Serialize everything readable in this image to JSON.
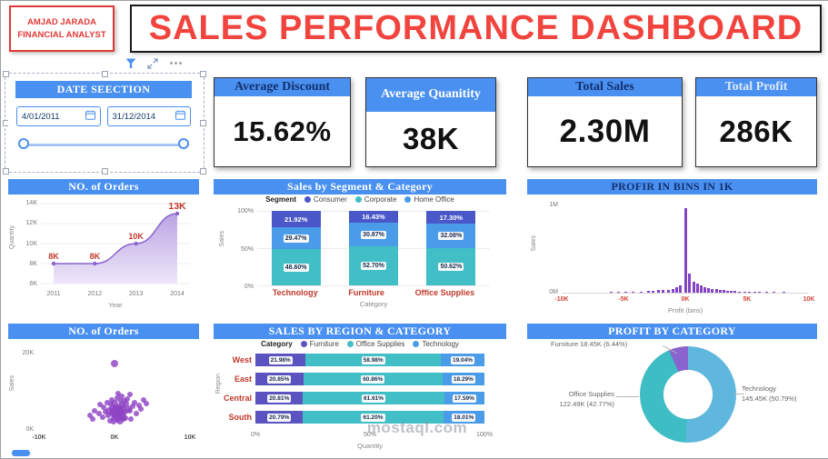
{
  "badge": {
    "line1": "AMJAD JARADA",
    "line2": "FINANCIAL ANALYST"
  },
  "title": "SALES PERFORMANCE DASHBOARD",
  "toolbar": {
    "more_glyph": "⋯"
  },
  "date_section": {
    "title": "DATE SEECTION",
    "start_date": "4/01/2011",
    "end_date": "31/12/2014"
  },
  "kpis": {
    "discount": {
      "title": "Average Discount",
      "value": "15.62%"
    },
    "quantity": {
      "title": "Average Quanitity",
      "value": "38K"
    },
    "sales": {
      "title": "Total Sales",
      "value": "2.30M"
    },
    "profit": {
      "title": "Total Profit",
      "value": "286K"
    }
  },
  "watermark": "mostaql.com",
  "colors": {
    "header_blue": "#4a90f0",
    "title_red": "#f2443e",
    "navy": "#12306e",
    "chart_purple": "#8a4fc8",
    "label_red": "#c0392b"
  },
  "chart_data": [
    {
      "id": "orders_area",
      "type": "area",
      "title": "NO. of Orders",
      "xlabel": "Year",
      "ylabel": "Quantity",
      "x": [
        "2011",
        "2012",
        "2013",
        "2014"
      ],
      "values_k": [
        8,
        8,
        10,
        13
      ],
      "point_labels": [
        "8K",
        "8K",
        "10K",
        "13K"
      ],
      "yticks": [
        "14K",
        "12K",
        "10K",
        "8K",
        "6K"
      ],
      "ylim_k": [
        6,
        14
      ],
      "line_color": "#8a63cf",
      "fill_from": "#b49ae0",
      "fill_to": "#ece4f9",
      "label_color": "#c0392b"
    },
    {
      "id": "segment_stack",
      "type": "stacked-column-100",
      "title": "Sales by Segment & Category",
      "legend_title": "Segment",
      "legend": [
        {
          "name": "Consumer",
          "color": "#4a57c8"
        },
        {
          "name": "Corporate",
          "color": "#41bec6"
        },
        {
          "name": "Home Office",
          "color": "#4a9be8"
        }
      ],
      "categories": [
        "Technology",
        "Furniture",
        "Office Supplies"
      ],
      "stacks": [
        [
          {
            "pct": 48.6,
            "color": "#41bec6"
          },
          {
            "pct": 29.47,
            "color": "#4a9be8"
          },
          {
            "pct": 21.92,
            "color": "#4a57c8"
          }
        ],
        [
          {
            "pct": 52.7,
            "color": "#41bec6"
          },
          {
            "pct": 30.87,
            "color": "#4a9be8"
          },
          {
            "pct": 16.43,
            "color": "#4a57c8"
          }
        ],
        [
          {
            "pct": 50.62,
            "color": "#41bec6"
          },
          {
            "pct": 32.08,
            "color": "#4a9be8"
          },
          {
            "pct": 17.3,
            "color": "#4a57c8"
          }
        ]
      ],
      "yticks": [
        "100%",
        "50%",
        "0%"
      ],
      "xlabel": "Category",
      "ylabel": "Sales"
    },
    {
      "id": "profit_bins",
      "type": "histogram",
      "title": "PROFIR IN BINS IN 1K",
      "xlabel": "Profit (bins)",
      "ylabel": "Sales",
      "bar_color": "#8344c4",
      "xlim_k": [
        -10,
        10
      ],
      "xticks": [
        {
          "label": "-10K",
          "x": -10
        },
        {
          "label": "-5K",
          "x": -5
        },
        {
          "label": "0K",
          "x": 0
        },
        {
          "label": "5K",
          "x": 5
        },
        {
          "label": "10K",
          "x": 10
        }
      ],
      "yticks": [
        {
          "label": "1M",
          "v": 1
        },
        {
          "label": "0M",
          "v": 0
        }
      ],
      "bars": [
        [
          -6,
          0.01
        ],
        [
          -5.4,
          0.008
        ],
        [
          -4.8,
          0.012
        ],
        [
          -4.2,
          0.01
        ],
        [
          -3.6,
          0.015
        ],
        [
          -3,
          0.018
        ],
        [
          -2.6,
          0.022
        ],
        [
          -2.2,
          0.03
        ],
        [
          -1.8,
          0.028
        ],
        [
          -1.4,
          0.035
        ],
        [
          -1,
          0.045
        ],
        [
          -0.7,
          0.06
        ],
        [
          -0.4,
          0.08
        ],
        [
          0,
          0.97
        ],
        [
          0.35,
          0.22
        ],
        [
          0.7,
          0.13
        ],
        [
          1,
          0.1
        ],
        [
          1.3,
          0.08
        ],
        [
          1.6,
          0.065
        ],
        [
          1.9,
          0.055
        ],
        [
          2.2,
          0.045
        ],
        [
          2.5,
          0.04
        ],
        [
          2.8,
          0.034
        ],
        [
          3.1,
          0.028
        ],
        [
          3.4,
          0.024
        ],
        [
          3.7,
          0.02
        ],
        [
          4,
          0.017
        ],
        [
          4.4,
          0.014
        ],
        [
          4.8,
          0.012
        ],
        [
          5.2,
          0.01
        ],
        [
          5.6,
          0.009
        ],
        [
          6,
          0.008
        ],
        [
          6.6,
          0.007
        ],
        [
          7.2,
          0.006
        ],
        [
          8,
          0.005
        ]
      ]
    },
    {
      "id": "orders_scatter",
      "type": "scatter",
      "title": "NO. of Orders",
      "ylabel": "Sales",
      "point_color": "#8f44c4",
      "xlim_k": [
        -10,
        10
      ],
      "ylim_k": [
        0,
        22
      ],
      "xticks": [
        {
          "label": "-10K",
          "x": -10
        },
        {
          "label": "0K",
          "x": 0
        },
        {
          "label": "10K",
          "x": 10
        }
      ],
      "yticks": [
        {
          "label": "20K",
          "v": 20
        },
        {
          "label": "0K",
          "v": 0
        }
      ],
      "points": [
        [
          -0.1,
          3.2,
          3
        ],
        [
          0.2,
          4.1,
          4
        ],
        [
          0.5,
          3.8,
          3
        ],
        [
          0.8,
          4.6,
          3
        ],
        [
          1.1,
          3.5,
          4
        ],
        [
          0.3,
          5.2,
          3
        ],
        [
          -0.4,
          4.4,
          3
        ],
        [
          0.6,
          5.8,
          3
        ],
        [
          1.4,
          4.9,
          3
        ],
        [
          1.8,
          5.5,
          4
        ],
        [
          -0.8,
          3.9,
          3
        ],
        [
          -1.2,
          4.7,
          3
        ],
        [
          0.1,
          6.1,
          3
        ],
        [
          0.9,
          6.4,
          4
        ],
        [
          1.6,
          6.9,
          3
        ],
        [
          2.1,
          5.1,
          3
        ],
        [
          2.4,
          6.2,
          3
        ],
        [
          -1.6,
          3.4,
          3
        ],
        [
          -2.1,
          4.2,
          3
        ],
        [
          0.4,
          2.7,
          3
        ],
        [
          0.7,
          2.4,
          4
        ],
        [
          1.2,
          2.9,
          3
        ],
        [
          -0.6,
          2.5,
          3
        ],
        [
          0,
          4.9,
          5
        ],
        [
          0.25,
          4.35,
          5
        ],
        [
          0.55,
          4.7,
          4
        ],
        [
          -0.25,
          5.4,
          4
        ],
        [
          0.15,
          3.7,
          4
        ],
        [
          0.45,
          5.5,
          5
        ],
        [
          0.75,
          5,
          4
        ],
        [
          1,
          4.25,
          4
        ],
        [
          -0.5,
          6.6,
          3
        ],
        [
          1.3,
          7.6,
          3
        ],
        [
          2.7,
          7.1,
          3
        ],
        [
          3.2,
          6.5,
          3
        ],
        [
          3.8,
          7.9,
          3
        ],
        [
          -2.6,
          5,
          3
        ],
        [
          -3.2,
          3.8,
          3
        ],
        [
          0.35,
          8.4,
          3
        ],
        [
          0.95,
          8.9,
          3
        ],
        [
          1.7,
          8.1,
          3
        ],
        [
          -1,
          7.3,
          3
        ],
        [
          -1.4,
          5.9,
          3
        ],
        [
          2.9,
          4.4,
          3
        ],
        [
          3.5,
          5.6,
          3
        ],
        [
          -0.15,
          2.1,
          3
        ],
        [
          0.65,
          3.3,
          4
        ],
        [
          1.5,
          3.1,
          3
        ],
        [
          2.2,
          2.8,
          3
        ],
        [
          -1.9,
          6.7,
          3
        ],
        [
          0.05,
          7,
          4
        ],
        [
          1.05,
          5.65,
          4
        ],
        [
          -0.7,
          5.15,
          4
        ],
        [
          0.85,
          7.7,
          3
        ],
        [
          2,
          9.3,
          3
        ],
        [
          -0.35,
          8,
          3
        ],
        [
          4.2,
          6.9,
          3
        ],
        [
          -0.05,
          17.4,
          4
        ],
        [
          0.5,
          9.6,
          3
        ],
        [
          -2.9,
          2.9,
          3
        ]
      ]
    },
    {
      "id": "region_stack",
      "type": "stacked-bar-100",
      "title": "SALES BY REGION & CATEGORY",
      "legend_title": "Category",
      "legend": [
        {
          "name": "Furniture",
          "color": "#5b54c0"
        },
        {
          "name": "Office Supplies",
          "color": "#41bec6"
        },
        {
          "name": "Technology",
          "color": "#4a9be8"
        }
      ],
      "rows": [
        {
          "region": "West",
          "values": [
            21.98,
            58.98,
            19.04
          ]
        },
        {
          "region": "East",
          "values": [
            20.85,
            60.86,
            18.29
          ]
        },
        {
          "region": "Central",
          "values": [
            20.81,
            61.61,
            17.59
          ]
        },
        {
          "region": "South",
          "values": [
            20.79,
            61.2,
            18.01
          ]
        }
      ],
      "xticks": [
        "0%",
        "50%",
        "100%"
      ],
      "xlabel": "Quantity",
      "ylabel": "Region"
    },
    {
      "id": "profit_donut",
      "type": "donut",
      "title": "PROFIT BY CATEGORY",
      "slices": [
        {
          "name": "Technology",
          "value_label": "145.45K (50.79%)",
          "pct": 50.79,
          "color": "#5fb7de"
        },
        {
          "name": "Office Supplies",
          "value_label": "122.49K (42.77%)",
          "pct": 42.77,
          "color": "#3fbdc5"
        },
        {
          "name": "Furniture",
          "value_label": "18.45K (6.44%)",
          "pct": 6.44,
          "color": "#8a63cf"
        }
      ]
    }
  ]
}
